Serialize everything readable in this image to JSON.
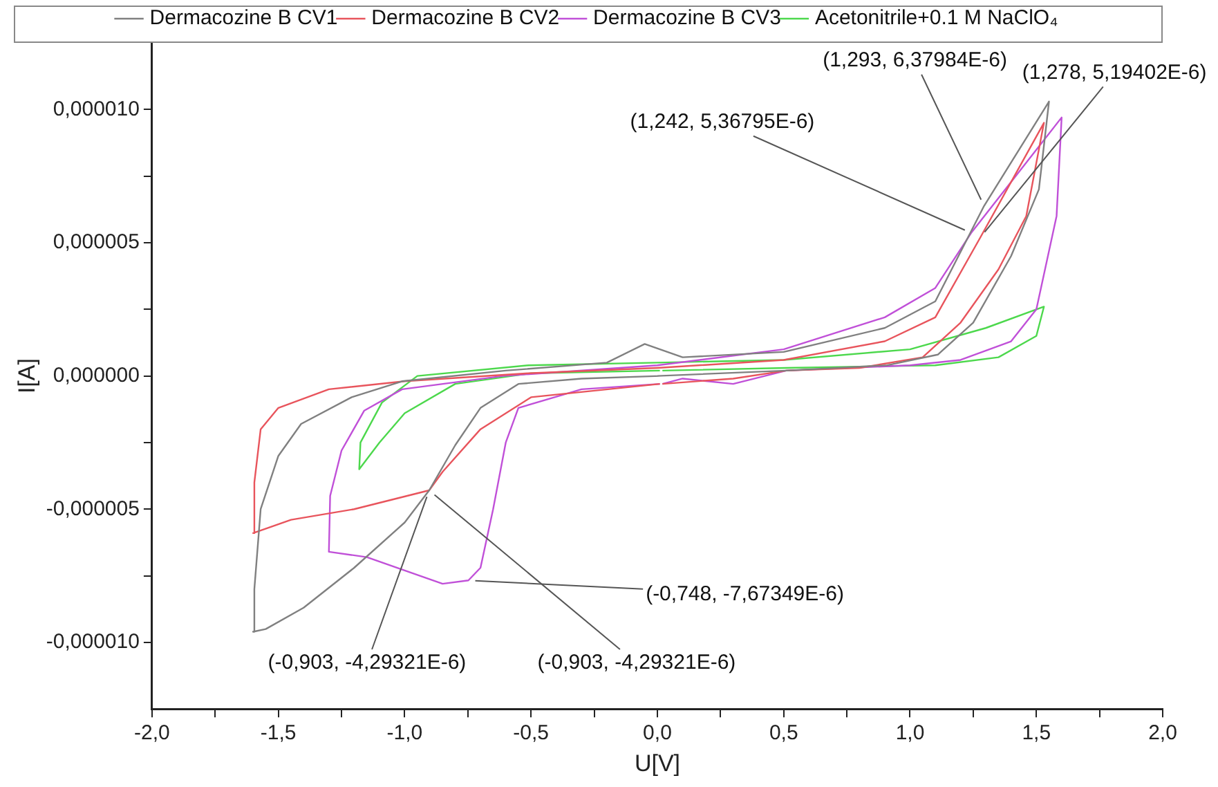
{
  "chart_data": {
    "type": "line",
    "xlabel": "U[V]",
    "ylabel": "I[A]",
    "xlim": [
      -2,
      2
    ],
    "ylim": [
      -1.25e-05,
      1.25e-05
    ],
    "xticks": [
      {
        "value": -2,
        "label": "-2,0"
      },
      {
        "value": -1.75,
        "label": null
      },
      {
        "value": -1.5,
        "label": "-1,5"
      },
      {
        "value": -1.25,
        "label": null
      },
      {
        "value": -1,
        "label": "-1,0"
      },
      {
        "value": -0.75,
        "label": null
      },
      {
        "value": -0.5,
        "label": "-0,5"
      },
      {
        "value": -0.25,
        "label": null
      },
      {
        "value": 0,
        "label": "0,0"
      },
      {
        "value": 0.25,
        "label": null
      },
      {
        "value": 0.5,
        "label": "0,5"
      },
      {
        "value": 0.75,
        "label": null
      },
      {
        "value": 1,
        "label": "1,0"
      },
      {
        "value": 1.25,
        "label": null
      },
      {
        "value": 1.5,
        "label": "1,5"
      },
      {
        "value": 1.75,
        "label": null
      },
      {
        "value": 2,
        "label": "2,0"
      }
    ],
    "yticks": [
      {
        "value": -1e-05,
        "label": "-0,000010"
      },
      {
        "value": -7.5e-06,
        "label": null
      },
      {
        "value": -5e-06,
        "label": "-0,000005"
      },
      {
        "value": -2.5e-06,
        "label": null
      },
      {
        "value": 0,
        "label": "0,000000"
      },
      {
        "value": 2.5e-06,
        "label": null
      },
      {
        "value": 5e-06,
        "label": "0,000005"
      },
      {
        "value": 7.5e-06,
        "label": null
      },
      {
        "value": 1e-05,
        "label": "0,000010"
      }
    ],
    "grid": false,
    "legend": "top",
    "marker": "none",
    "line_style": "solid",
    "series": [
      {
        "name": "Dermacozine B CV1",
        "type": "line",
        "color": "#808080",
        "x": [
          0.01,
          -0.3,
          -0.55,
          -0.7,
          -0.8,
          -0.903,
          -1,
          -1.2,
          -1.4,
          -1.55,
          -1.6,
          -1.595,
          -1.57,
          -1.5,
          -1.41,
          -1.21,
          -1.01,
          -0.6,
          -0.2,
          -0.05,
          0.1,
          0.5,
          0.9,
          1.1,
          1.293,
          1.55,
          1.51,
          1.4,
          1.25,
          1.11,
          0.91,
          0.51,
          0
        ],
        "values": [
          0,
          -1e-07,
          -3e-07,
          -1.2e-06,
          -2.6e-06,
          -4.29321e-06,
          -5.5e-06,
          -7.2e-06,
          -8.7e-06,
          -9.5e-06,
          -9.6e-06,
          -8e-06,
          -5e-06,
          -3e-06,
          -1.8e-06,
          -8e-07,
          -2e-07,
          2e-07,
          5e-07,
          1.2e-06,
          7e-07,
          9e-07,
          1.8e-06,
          2.8e-06,
          6.37984e-06,
          1.03e-05,
          7e-06,
          4.5e-06,
          2e-06,
          8e-07,
          4e-07,
          2e-07,
          0
        ]
      },
      {
        "name": "Dermacozine B CV2",
        "type": "line",
        "color": "#e8545c",
        "x": [
          0.01,
          -0.5,
          -0.7,
          -0.85,
          -0.903,
          -1.2,
          -1.45,
          -1.6,
          -1.595,
          -1.57,
          -1.5,
          -1.3,
          -1,
          -0.51,
          0,
          0.5,
          0.9,
          1.1,
          1.278,
          1.53,
          1.46,
          1.35,
          1.2,
          1.05,
          0.8,
          0.51,
          0.3,
          0.02
        ],
        "values": [
          -3e-07,
          -8e-07,
          -2e-06,
          -3.6e-06,
          -4.29321e-06,
          -5e-06,
          -5.4e-06,
          -5.9e-06,
          -4e-06,
          -2e-06,
          -1.2e-06,
          -5e-07,
          -2e-07,
          1e-07,
          3e-07,
          6e-07,
          1.3e-06,
          2.2e-06,
          5.19402e-06,
          9.5e-06,
          6e-06,
          4e-06,
          2e-06,
          7e-07,
          3e-07,
          2e-07,
          -1e-07,
          -3e-07
        ]
      },
      {
        "name": "Dermacozine B CV3",
        "type": "line",
        "color": "#c050d8",
        "x": [
          0.01,
          -0.3,
          -0.55,
          -0.6,
          -0.65,
          -0.7,
          -0.748,
          -0.85,
          -1,
          -1.15,
          -1.3,
          -1.295,
          -1.25,
          -1.16,
          -1.01,
          -0.61,
          0,
          0.5,
          0.9,
          1.1,
          1.242,
          1.6,
          1.58,
          1.5,
          1.4,
          1.2,
          1,
          0.51,
          0.3,
          0.1,
          0.02
        ],
        "values": [
          -3e-07,
          -5e-07,
          -1.2e-06,
          -2.5e-06,
          -5e-06,
          -7.2e-06,
          -7.67349e-06,
          -7.8e-06,
          -7.3e-06,
          -6.8e-06,
          -6.6e-06,
          -4.5e-06,
          -2.8e-06,
          -1.3e-06,
          -5e-07,
          0,
          4e-07,
          1e-06,
          2.2e-06,
          3.3e-06,
          5.36795e-06,
          9.7e-06,
          6e-06,
          2.5e-06,
          1.3e-06,
          6e-07,
          4e-07,
          2e-07,
          -3e-07,
          -1e-07,
          -3e-07
        ]
      },
      {
        "name": "Acetonitrile+0.1 M NaClO₄",
        "type": "line",
        "color": "#4cd84c",
        "x": [
          0.01,
          -0.5,
          -0.8,
          -1,
          -1.1,
          -1.18,
          -1.175,
          -1.09,
          -0.95,
          -0.51,
          0,
          0.5,
          1,
          1.3,
          1.53,
          1.5,
          1.35,
          1.1,
          0.51,
          0.02
        ],
        "values": [
          2e-07,
          1e-07,
          -3e-07,
          -1.4e-06,
          -2.5e-06,
          -3.5e-06,
          -2.5e-06,
          -1e-06,
          0,
          4e-07,
          5e-07,
          6e-07,
          1e-06,
          1.8e-06,
          2.6e-06,
          1.5e-06,
          7e-07,
          4e-07,
          3e-07,
          2e-07
        ]
      }
    ],
    "annotations": [
      {
        "text": "(1,293, 6,37984E-6)",
        "x": 1.293,
        "y": 6.37984e-06
      },
      {
        "text": "(1,278, 5,19402E-6)",
        "x": 1.278,
        "y": 5.19402e-06
      },
      {
        "text": "(1,242, 5,36795E-6)",
        "x": 1.242,
        "y": 5.36795e-06
      },
      {
        "text": "(-0,748, -7,67349E-6)",
        "x": -0.748,
        "y": -7.67349e-06
      },
      {
        "text": "(-0,903, -4,29321E-6)",
        "x": -0.903,
        "y": -4.29321e-06
      },
      {
        "text": "(-0,903, -4,29321E-6)",
        "x": -0.903,
        "y": -4.29321e-06
      }
    ]
  }
}
